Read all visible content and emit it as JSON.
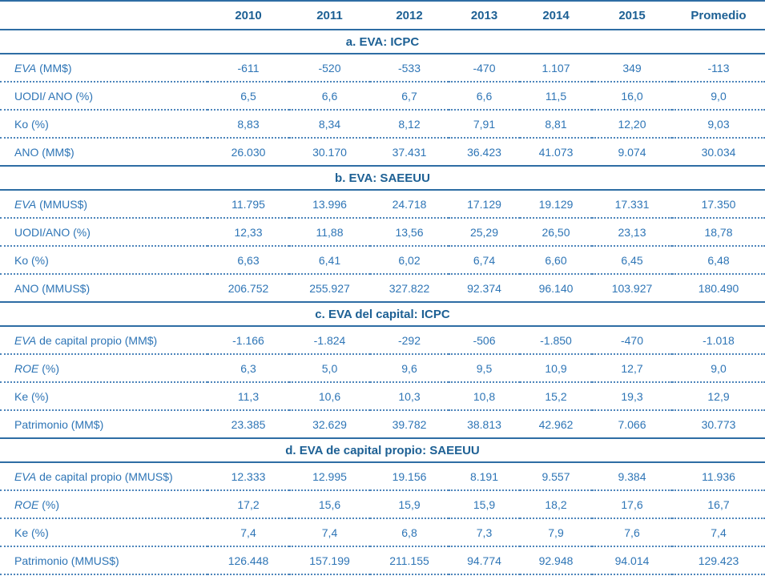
{
  "colors": {
    "header_text": "#1d6094",
    "body_text": "#2e75b6",
    "solid_line": "#2e6da4",
    "dotted_line": "#4d85bb",
    "background": "#ffffff"
  },
  "table": {
    "corner_label": "",
    "columns": [
      "2010",
      "2011",
      "2012",
      "2013",
      "2014",
      "2015",
      "Promedio"
    ],
    "sections": [
      {
        "title": "a. EVA: ICPC",
        "rows": [
          {
            "label_italic": "EVA",
            "label_rest": " (MM$)",
            "values": [
              "-611",
              "-520",
              "-533",
              "-470",
              "1.107",
              "349",
              "-113"
            ]
          },
          {
            "label_italic": "",
            "label_rest": "UODI/ ANO (%)",
            "values": [
              "6,5",
              "6,6",
              "6,7",
              "6,6",
              "11,5",
              "16,0",
              "9,0"
            ]
          },
          {
            "label_italic": "",
            "label_rest": "Ko (%)",
            "values": [
              "8,83",
              "8,34",
              "8,12",
              "7,91",
              "8,81",
              "12,20",
              "9,03"
            ]
          },
          {
            "label_italic": "",
            "label_rest": "ANO (MM$)",
            "values": [
              "26.030",
              "30.170",
              "37.431",
              "36.423",
              "41.073",
              "9.074",
              "30.034"
            ]
          }
        ]
      },
      {
        "title": "b. EVA: SAEEUU",
        "rows": [
          {
            "label_italic": "EVA",
            "label_rest": " (MMUS$)",
            "values": [
              "11.795",
              "13.996",
              "24.718",
              "17.129",
              "19.129",
              "17.331",
              "17.350"
            ]
          },
          {
            "label_italic": "",
            "label_rest": "UODI/ANO (%)",
            "values": [
              "12,33",
              "11,88",
              "13,56",
              "25,29",
              "26,50",
              "23,13",
              "18,78"
            ]
          },
          {
            "label_italic": "",
            "label_rest": "Ko (%)",
            "values": [
              "6,63",
              "6,41",
              "6,02",
              "6,74",
              "6,60",
              "6,45",
              "6,48"
            ]
          },
          {
            "label_italic": "",
            "label_rest": "ANO (MMUS$)",
            "values": [
              "206.752",
              "255.927",
              "327.822",
              "92.374",
              "96.140",
              "103.927",
              "180.490"
            ]
          }
        ]
      },
      {
        "title": "c. EVA del capital: ICPC",
        "rows": [
          {
            "label_italic": "EVA",
            "label_rest": " de capital propio (MM$)",
            "values": [
              "-1.166",
              "-1.824",
              "-292",
              "-506",
              "-1.850",
              "-470",
              "-1.018"
            ]
          },
          {
            "label_italic": "ROE",
            "label_rest": " (%)",
            "values": [
              "6,3",
              "5,0",
              "9,6",
              "9,5",
              "10,9",
              "12,7",
              "9,0"
            ]
          },
          {
            "label_italic": "",
            "label_rest": "Ke (%)",
            "values": [
              "11,3",
              "10,6",
              "10,3",
              "10,8",
              "15,2",
              "19,3",
              "12,9"
            ]
          },
          {
            "label_italic": "",
            "label_rest": "Patrimonio (MM$)",
            "values": [
              "23.385",
              "32.629",
              "39.782",
              "38.813",
              "42.962",
              "7.066",
              "30.773"
            ]
          }
        ]
      },
      {
        "title": "d. EVA de capital propio: SAEEUU",
        "rows": [
          {
            "label_italic": "EVA",
            "label_rest": " de capital propio (MMUS$)",
            "values": [
              "12.333",
              "12.995",
              "19.156",
              "8.191",
              "9.557",
              "9.384",
              "11.936"
            ]
          },
          {
            "label_italic": "ROE",
            "label_rest": " (%)",
            "values": [
              "17,2",
              "15,6",
              "15,9",
              "15,9",
              "18,2",
              "17,6",
              "16,7"
            ]
          },
          {
            "label_italic": "",
            "label_rest": "Ke (%)",
            "values": [
              "7,4",
              "7,4",
              "6,8",
              "7,3",
              "7,9",
              "7,6",
              "7,4"
            ]
          },
          {
            "label_italic": "",
            "label_rest": "Patrimonio (MMUS$)",
            "values": [
              "126.448",
              "157.199",
              "211.155",
              "94.774",
              "92.948",
              "94.014",
              "129.423"
            ]
          }
        ]
      }
    ]
  }
}
